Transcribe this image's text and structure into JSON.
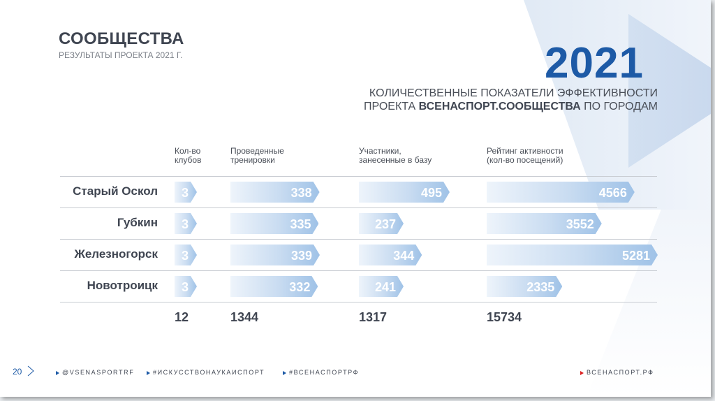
{
  "header": {
    "title": "СООБЩЕСТВА",
    "subtitle": "РЕЗУЛЬТАТЫ ПРОЕКТА 2021 Г.",
    "year": "2021",
    "heading_line1": "КОЛИЧЕСТВЕННЫЕ ПОКАЗАТЕЛИ ЭФФЕКТИВНОСТИ",
    "heading_line2_pre": "ПРОЕКТА",
    "heading_line2_bold": "ВСЕНАСПОРТ.СООБЩЕСТВА",
    "heading_line2_post": "ПО ГОРОДАМ"
  },
  "chart_data": {
    "type": "table",
    "columns": [
      {
        "key": "clubs",
        "label_1": "Кол-во",
        "label_2": "клубов",
        "total": "12"
      },
      {
        "key": "trainings",
        "label_1": "Проведенные",
        "label_2": "тренировки",
        "total": "1344"
      },
      {
        "key": "participants",
        "label_1": "Участники,",
        "label_2": "занесенные в базу",
        "total": "1317"
      },
      {
        "key": "rating",
        "label_1": "Рейтинг активности",
        "label_2": "(кол-во посещений)",
        "total": "15734"
      }
    ],
    "rows": [
      {
        "city": "Старый Оскол",
        "clubs": 3,
        "trainings": 338,
        "participants": 495,
        "rating": 4566
      },
      {
        "city": "Губкин",
        "clubs": 3,
        "trainings": 335,
        "participants": 237,
        "rating": 3552
      },
      {
        "city": "Железногорск",
        "clubs": 3,
        "trainings": 339,
        "participants": 344,
        "rating": 5281
      },
      {
        "city": "Новотроицк",
        "clubs": 3,
        "trainings": 332,
        "participants": 241,
        "rating": 2335
      }
    ]
  },
  "footer": {
    "page_number": "20",
    "tag1": "@VSENASPORTRF",
    "tag2": "#ИСКУССТВОНАУКАИСПОРТ",
    "tag3": "#ВСЕНАСПОРТРФ",
    "site": "ВСЕНАСПОРТ.РФ"
  },
  "colors": {
    "accent": "#1d5aa6",
    "text": "#3f4551",
    "bar_light": "#eef4fb",
    "bar_dark": "#9fc2e7",
    "footer_marker": "#dd2222"
  }
}
